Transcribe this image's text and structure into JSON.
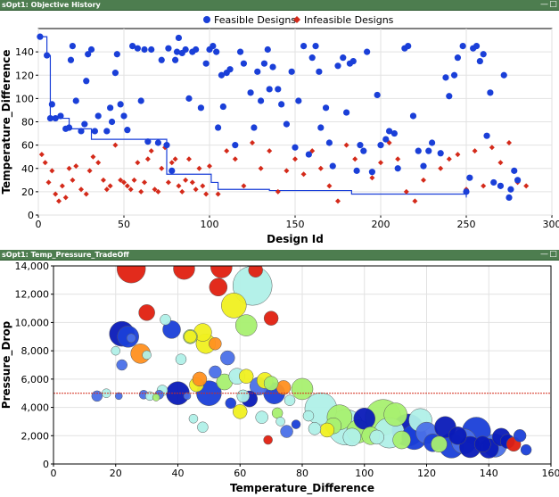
{
  "panel1": {
    "title": "sOpt1: Objective History",
    "minimize_icon": "minimize-icon",
    "maximize_icon": "maximize-icon"
  },
  "panel2": {
    "title": "sOpt1: Temp_Pressure_TradeOff",
    "minimize_icon": "minimize-icon",
    "maximize_icon": "maximize-icon"
  },
  "chart_data": [
    {
      "type": "scatter",
      "title": "",
      "xlabel": "Design Id",
      "ylabel": "Temperature_Difference",
      "xlim": [
        0,
        300
      ],
      "ylim": [
        0,
        160
      ],
      "xticks": [
        0,
        50,
        100,
        150,
        200,
        250,
        300
      ],
      "yticks": [
        0,
        20,
        40,
        60,
        80,
        100,
        120,
        140
      ],
      "legend": {
        "position": "top",
        "entries": [
          "Feasible Designs",
          "Infeasible Designs"
        ]
      },
      "grid": true,
      "colors": {
        "feasible": "#1a3fd8",
        "infeasible": "#d42a1a",
        "history_line": "#1a3fd8"
      },
      "series": [
        {
          "name": "Feasible Designs",
          "marker": "circle",
          "x": [
            1,
            5,
            7,
            8,
            10,
            13,
            16,
            18,
            19,
            20,
            22,
            25,
            27,
            28,
            29,
            31,
            33,
            35,
            40,
            42,
            43,
            45,
            46,
            48,
            50,
            52,
            55,
            58,
            60,
            62,
            64,
            66,
            70,
            72,
            75,
            76,
            78,
            80,
            81,
            82,
            84,
            86,
            88,
            90,
            92,
            95,
            98,
            100,
            102,
            104,
            105,
            107,
            108,
            110,
            112,
            115,
            118,
            120,
            124,
            126,
            128,
            130,
            132,
            134,
            135,
            137,
            140,
            142,
            145,
            148,
            150,
            152,
            155,
            158,
            160,
            162,
            164,
            165,
            168,
            170,
            172,
            175,
            178,
            180,
            182,
            184,
            186,
            188,
            190,
            192,
            195,
            198,
            200,
            203,
            205,
            208,
            210,
            214,
            216,
            219,
            222,
            225,
            228,
            230,
            235,
            238,
            240,
            243,
            245,
            248,
            250,
            252,
            254,
            256,
            258,
            260,
            262,
            264,
            266,
            270,
            272,
            275,
            276,
            278,
            280
          ],
          "y": [
            153,
            137,
            83,
            95,
            83,
            85,
            74,
            75,
            133,
            145,
            98,
            72,
            78,
            115,
            138,
            142,
            72,
            85,
            72,
            92,
            80,
            122,
            138,
            95,
            85,
            73,
            145,
            143,
            98,
            142,
            63,
            142,
            62,
            133,
            60,
            143,
            38,
            133,
            140,
            152,
            139,
            142,
            100,
            140,
            142,
            92,
            130,
            142,
            145,
            140,
            75,
            120,
            93,
            122,
            125,
            60,
            140,
            130,
            105,
            75,
            123,
            98,
            130,
            142,
            108,
            127,
            108,
            95,
            78,
            123,
            58,
            98,
            145,
            52,
            135,
            145,
            123,
            75,
            92,
            62,
            42,
            128,
            135,
            88,
            130,
            132,
            38,
            60,
            55,
            140,
            37,
            103,
            60,
            65,
            72,
            70,
            40,
            143,
            145,
            85,
            55,
            42,
            55,
            62,
            53,
            118,
            102,
            120,
            135,
            145,
            20,
            32,
            143,
            145,
            132,
            138,
            68,
            105,
            28,
            25,
            120,
            15,
            22,
            38,
            30
          ]
        },
        {
          "name": "Infeasible Designs",
          "marker": "diamond",
          "x": [
            2,
            4,
            6,
            8,
            10,
            12,
            14,
            16,
            18,
            20,
            22,
            25,
            28,
            30,
            32,
            35,
            38,
            40,
            42,
            45,
            48,
            50,
            52,
            54,
            56,
            58,
            60,
            62,
            64,
            66,
            68,
            70,
            72,
            74,
            76,
            78,
            80,
            82,
            84,
            86,
            88,
            90,
            92,
            94,
            96,
            98,
            100,
            105,
            110,
            115,
            120,
            125,
            130,
            135,
            140,
            145,
            150,
            155,
            160,
            165,
            170,
            175,
            180,
            185,
            190,
            195,
            200,
            205,
            210,
            215,
            220,
            225,
            230,
            235,
            240,
            245,
            250,
            255,
            260,
            265,
            270,
            275,
            280,
            285
          ],
          "y": [
            52,
            45,
            28,
            38,
            18,
            12,
            25,
            15,
            40,
            30,
            42,
            22,
            18,
            38,
            50,
            45,
            30,
            22,
            25,
            60,
            30,
            28,
            25,
            22,
            30,
            45,
            20,
            28,
            48,
            55,
            22,
            20,
            40,
            58,
            28,
            45,
            48,
            25,
            20,
            30,
            48,
            28,
            22,
            40,
            25,
            18,
            42,
            18,
            55,
            48,
            25,
            62,
            40,
            55,
            20,
            38,
            48,
            35,
            55,
            40,
            25,
            12,
            60,
            48,
            55,
            32,
            45,
            62,
            48,
            20,
            12,
            30,
            62,
            40,
            48,
            52,
            22,
            55,
            25,
            58,
            45,
            62,
            28,
            25
          ]
        }
      ],
      "history_line": {
        "name": "Objective History",
        "x": [
          1,
          5,
          5,
          7,
          7,
          18,
          18,
          31,
          31,
          75,
          75,
          101,
          101,
          105,
          105,
          135,
          135,
          183,
          183,
          250,
          250
        ],
        "y": [
          153,
          153,
          137,
          137,
          83,
          83,
          74,
          74,
          65,
          65,
          35,
          35,
          28,
          28,
          22,
          22,
          21,
          21,
          18,
          18,
          15
        ]
      }
    },
    {
      "type": "scatter",
      "title": "",
      "xlabel": "Temperature_Difference",
      "ylabel": "Pressure_Drop",
      "xlim": [
        0,
        160
      ],
      "ylim": [
        0,
        14000
      ],
      "xticks": [
        0,
        20,
        40,
        60,
        80,
        100,
        120,
        140,
        160
      ],
      "yticks": [
        0,
        2000,
        4000,
        6000,
        8000,
        10000,
        12000,
        14000
      ],
      "grid": true,
      "reference_line": {
        "y": 5000,
        "color": "#d42a1a"
      },
      "color_scale": [
        "#0a1ab8",
        "#1a3fd8",
        "#4a70e8",
        "#b0f0e8",
        "#a8f070",
        "#f0f020",
        "#ff9020",
        "#e02010"
      ],
      "bubbles": {
        "x": [
          14,
          17,
          21,
          22,
          24,
          25,
          28,
          29,
          30,
          31,
          33,
          34,
          35,
          38,
          40,
          41,
          42,
          43,
          44,
          45,
          46,
          47,
          48,
          49,
          50,
          52,
          53,
          54,
          55,
          56,
          57,
          58,
          59,
          60,
          61,
          62,
          63,
          64,
          65,
          66,
          67,
          68,
          69,
          70,
          71,
          72,
          73,
          74,
          75,
          76,
          78,
          80,
          82,
          84,
          86,
          88,
          90,
          92,
          94,
          96,
          98,
          100,
          102,
          104,
          106,
          108,
          110,
          112,
          114,
          116,
          118,
          120,
          122,
          124,
          126,
          128,
          130,
          132,
          134,
          136,
          138,
          140,
          142,
          144,
          146,
          148,
          150,
          152,
          20,
          25,
          30,
          44,
          48,
          52,
          36,
          22,
          62,
          70
        ],
        "y": [
          4800,
          5000,
          4800,
          9200,
          9000,
          13800,
          7800,
          4900,
          10700,
          4800,
          4700,
          4900,
          5200,
          9500,
          5000,
          7400,
          13800,
          4800,
          9000,
          3200,
          5600,
          6000,
          2600,
          8500,
          5000,
          6500,
          12500,
          13900,
          5800,
          7500,
          4300,
          11200,
          6200,
          3700,
          4800,
          9800,
          4600,
          12600,
          13700,
          5500,
          3300,
          5900,
          1700,
          10300,
          5000,
          3600,
          3000,
          5400,
          2300,
          4500,
          2800,
          5300,
          3400,
          2500,
          3900,
          2400,
          2700,
          3300,
          2600,
          1900,
          2300,
          3200,
          2000,
          1900,
          3300,
          2200,
          3500,
          1700,
          2400,
          1900,
          3100,
          2200,
          1500,
          1400,
          2600,
          1300,
          2000,
          1600,
          1200,
          2300,
          1400,
          1100,
          1300,
          1900,
          1600,
          1400,
          2000,
          1000,
          8000,
          8900,
          7700,
          9000,
          9300,
          8500,
          10200,
          7000,
          6200,
          5700
        ],
        "size": [
          6,
          5,
          4,
          14,
          12,
          16,
          11,
          5,
          9,
          5,
          4,
          5,
          6,
          10,
          13,
          6,
          12,
          4,
          7,
          5,
          8,
          8,
          6,
          11,
          14,
          7,
          10,
          12,
          9,
          8,
          6,
          14,
          9,
          8,
          7,
          12,
          9,
          22,
          8,
          10,
          7,
          9,
          5,
          8,
          12,
          6,
          5,
          8,
          7,
          6,
          5,
          12,
          6,
          7,
          18,
          8,
          9,
          14,
          20,
          10,
          13,
          12,
          10,
          8,
          20,
          17,
          13,
          10,
          18,
          14,
          13,
          12,
          10,
          9,
          12,
          14,
          10,
          14,
          12,
          16,
          9,
          11,
          13,
          10,
          8,
          8,
          7,
          6,
          5,
          5,
          5,
          8,
          10,
          7,
          6,
          6,
          8,
          8
        ],
        "color": [
          2,
          3,
          2,
          0,
          1,
          7,
          6,
          2,
          7,
          3,
          4,
          2,
          3,
          1,
          0,
          3,
          7,
          2,
          5,
          3,
          5,
          6,
          3,
          5,
          1,
          2,
          7,
          7,
          4,
          2,
          1,
          5,
          3,
          5,
          3,
          4,
          0,
          3,
          7,
          2,
          3,
          5,
          7,
          7,
          1,
          4,
          3,
          6,
          2,
          3,
          1,
          4,
          3,
          3,
          3,
          5,
          4,
          4,
          3,
          3,
          4,
          0,
          4,
          3,
          4,
          3,
          4,
          4,
          0,
          1,
          3,
          2,
          1,
          4,
          0,
          1,
          0,
          2,
          0,
          1,
          0,
          0,
          2,
          0,
          0,
          7,
          1,
          1,
          3,
          2,
          3,
          4,
          5,
          6,
          3,
          2,
          5,
          4
        ]
      }
    }
  ]
}
